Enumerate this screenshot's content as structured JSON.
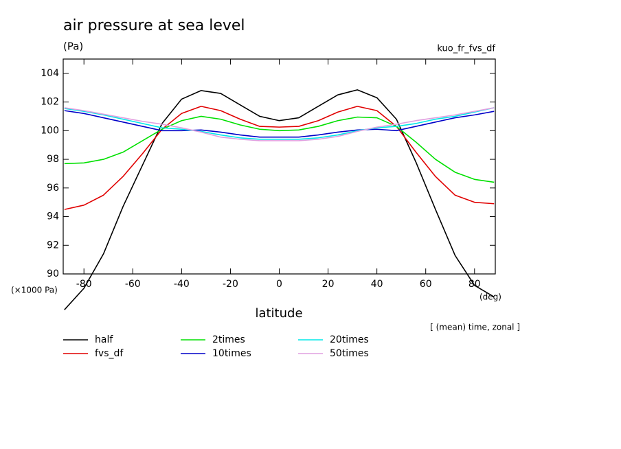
{
  "chart_data": {
    "type": "line",
    "title": "air pressure at sea level",
    "y_unit": "(Pa)",
    "run_label": "kuo_fr_fvs_df",
    "y_scale_label": "(×1000 Pa)",
    "x_label": "latitude",
    "x_unit": "(deg)",
    "note": "[ (mean) time, zonal ]",
    "x": [
      -88,
      -80,
      -72,
      -64,
      -56,
      -48,
      -40,
      -32,
      -24,
      -16,
      -8,
      0,
      8,
      16,
      24,
      32,
      40,
      48,
      56,
      64,
      72,
      80,
      88
    ],
    "series": [
      {
        "name": "half",
        "color": "#000000",
        "values": [
          87.5,
          89.0,
          91.4,
          94.7,
          97.6,
          100.5,
          102.2,
          102.8,
          102.6,
          101.8,
          101.0,
          100.7,
          100.9,
          101.7,
          102.5,
          102.85,
          102.3,
          100.8,
          97.8,
          94.5,
          91.3,
          89.2,
          88.4
        ]
      },
      {
        "name": "fvs_df",
        "color": "#e00000",
        "values": [
          94.5,
          94.8,
          95.5,
          96.8,
          98.4,
          100.1,
          101.2,
          101.7,
          101.4,
          100.8,
          100.3,
          100.25,
          100.3,
          100.7,
          101.3,
          101.7,
          101.4,
          100.3,
          98.5,
          96.8,
          95.5,
          95.0,
          94.9
        ]
      },
      {
        "name": "2times",
        "color": "#00e000",
        "values": [
          97.7,
          97.75,
          98.0,
          98.5,
          99.3,
          100.1,
          100.7,
          101.0,
          100.8,
          100.4,
          100.1,
          100.0,
          100.05,
          100.3,
          100.7,
          100.95,
          100.9,
          100.3,
          99.2,
          98.0,
          97.1,
          96.6,
          96.4
        ]
      },
      {
        "name": "10times",
        "color": "#0000c8",
        "values": [
          101.4,
          101.2,
          100.9,
          100.6,
          100.3,
          100.0,
          100.0,
          100.05,
          99.9,
          99.7,
          99.55,
          99.55,
          99.55,
          99.7,
          99.9,
          100.05,
          100.1,
          100.0,
          100.3,
          100.6,
          100.9,
          101.1,
          101.35
        ]
      },
      {
        "name": "20times",
        "color": "#00e8e8",
        "values": [
          101.55,
          101.35,
          101.1,
          100.8,
          100.5,
          100.2,
          100.1,
          99.95,
          99.7,
          99.5,
          99.4,
          99.4,
          99.4,
          99.5,
          99.7,
          100.0,
          100.2,
          100.3,
          100.5,
          100.8,
          101.0,
          101.3,
          101.6
        ]
      },
      {
        "name": "50times",
        "color": "#e0a0e0",
        "values": [
          101.6,
          101.4,
          101.15,
          100.9,
          100.65,
          100.45,
          100.2,
          99.9,
          99.55,
          99.4,
          99.3,
          99.3,
          99.3,
          99.4,
          99.6,
          99.95,
          100.25,
          100.45,
          100.7,
          100.9,
          101.1,
          101.35,
          101.6
        ]
      }
    ],
    "xlim": [
      -88.5,
      88.5
    ],
    "xticks": [
      -80,
      -60,
      -40,
      -20,
      0,
      20,
      40,
      60,
      80
    ],
    "ylim": [
      90,
      105
    ],
    "yticks": [
      90,
      92,
      94,
      96,
      98,
      100,
      102,
      104
    ]
  }
}
